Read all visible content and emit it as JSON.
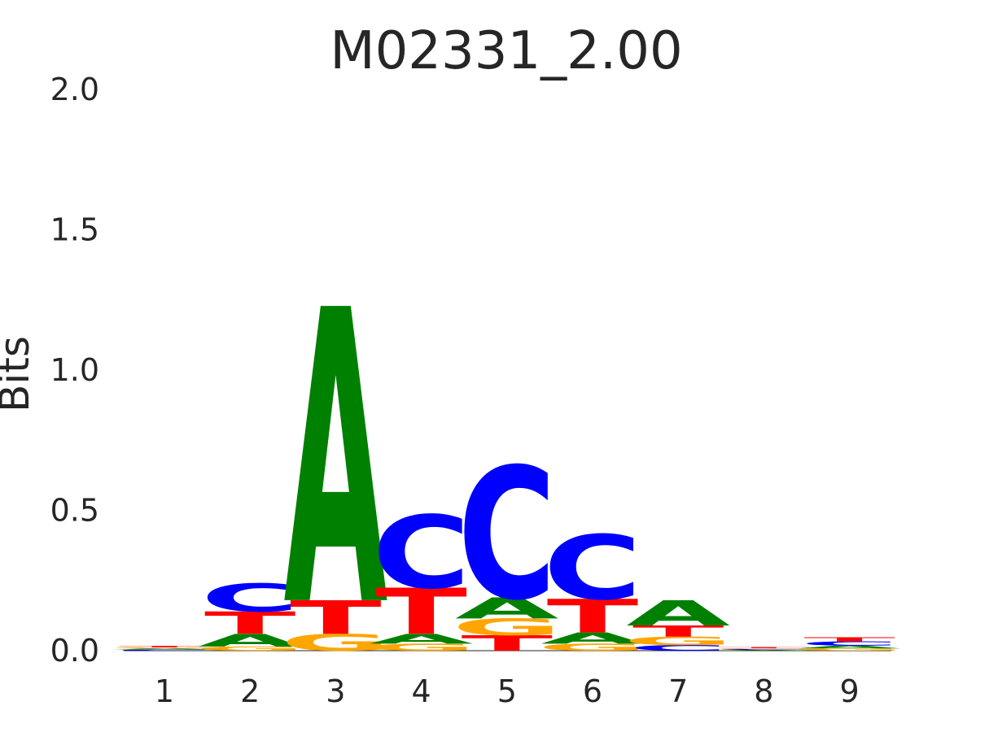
{
  "chart_data": {
    "type": "sequence-logo",
    "title": "M02331_2.00",
    "ylabel": "Bits",
    "xlabel": "",
    "ylim": [
      0,
      2
    ],
    "yticks": [
      "0.0",
      "0.5",
      "1.0",
      "1.5",
      "2.0"
    ],
    "positions": [
      "1",
      "2",
      "3",
      "4",
      "5",
      "6",
      "7",
      "8",
      "9"
    ],
    "colors": {
      "A": "#008000",
      "C": "#0000ff",
      "G": "#ffa500",
      "T": "#ff0000"
    },
    "letters": [
      [
        {
          "base": "C",
          "bits": 0.004
        },
        {
          "base": "A",
          "bits": 0.004
        },
        {
          "base": "G",
          "bits": 0.004
        },
        {
          "base": "T",
          "bits": 0.005
        }
      ],
      [
        {
          "base": "G",
          "bits": 0.015
        },
        {
          "base": "A",
          "bits": 0.045
        },
        {
          "base": "T",
          "bits": 0.08
        },
        {
          "base": "C",
          "bits": 0.1
        }
      ],
      [
        {
          "base": "G",
          "bits": 0.06
        },
        {
          "base": "T",
          "bits": 0.12
        },
        {
          "base": "A",
          "bits": 1.05
        }
      ],
      [
        {
          "base": "G",
          "bits": 0.025
        },
        {
          "base": "A",
          "bits": 0.035
        },
        {
          "base": "T",
          "bits": 0.165
        },
        {
          "base": "C",
          "bits": 0.26
        }
      ],
      [
        {
          "base": "T",
          "bits": 0.055
        },
        {
          "base": "G",
          "bits": 0.06
        },
        {
          "base": "A",
          "bits": 0.075
        },
        {
          "base": "C",
          "bits": 0.47
        }
      ],
      [
        {
          "base": "G",
          "bits": 0.025
        },
        {
          "base": "A",
          "bits": 0.04
        },
        {
          "base": "T",
          "bits": 0.12
        },
        {
          "base": "C",
          "bits": 0.23
        }
      ],
      [
        {
          "base": "C",
          "bits": 0.02
        },
        {
          "base": "G",
          "bits": 0.03
        },
        {
          "base": "T",
          "bits": 0.04
        },
        {
          "base": "A",
          "bits": 0.09
        }
      ],
      [
        {
          "base": "A",
          "bits": 0.003
        },
        {
          "base": "C",
          "bits": 0.003
        },
        {
          "base": "G",
          "bits": 0.003
        },
        {
          "base": "T",
          "bits": 0.004
        }
      ],
      [
        {
          "base": "G",
          "bits": 0.008
        },
        {
          "base": "A",
          "bits": 0.01
        },
        {
          "base": "C",
          "bits": 0.015
        },
        {
          "base": "T",
          "bits": 0.015
        }
      ]
    ]
  }
}
